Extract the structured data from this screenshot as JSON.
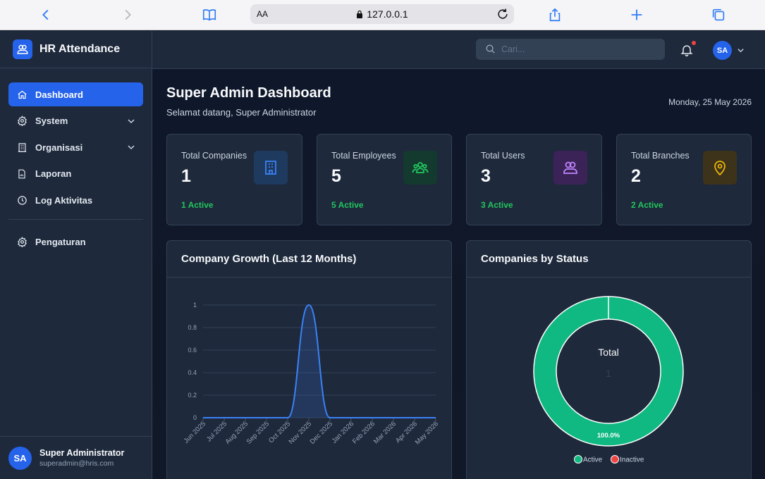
{
  "browser": {
    "text_size_label": "AA",
    "url": "127.0.0.1",
    "icons": [
      "back-icon",
      "forward-icon",
      "bookmarks-icon",
      "lock-icon",
      "reload-icon",
      "share-icon",
      "new-tab-icon",
      "tabs-icon"
    ]
  },
  "app": {
    "name": "HR Attendance",
    "logo_icon": "users-icon"
  },
  "sidebar": {
    "items": [
      {
        "label": "Dashboard",
        "icon": "home-icon",
        "active": true
      },
      {
        "label": "System",
        "icon": "gear-icon",
        "has_submenu": true
      },
      {
        "label": "Organisasi",
        "icon": "building-icon",
        "has_submenu": true
      },
      {
        "label": "Laporan",
        "icon": "report-icon"
      },
      {
        "label": "Log Aktivitas",
        "icon": "clock-icon"
      }
    ],
    "secondary": [
      {
        "label": "Pengaturan",
        "icon": "gear-icon"
      }
    ],
    "user": {
      "initials": "SA",
      "name": "Super Administrator",
      "email": "superadmin@hris.com"
    }
  },
  "topbar": {
    "search_placeholder": "Cari...",
    "avatar_initials": "SA",
    "has_notification": true
  },
  "page": {
    "title": "Super Admin Dashboard",
    "subtitle": "Selamat datang, Super Administrator",
    "date": "Monday, 25 May 2026"
  },
  "stats": [
    {
      "label": "Total Companies",
      "value": "1",
      "active": "1 Active",
      "icon": "building-icon",
      "color": "#3b82f6",
      "bg": "#1e3a5f"
    },
    {
      "label": "Total Employees",
      "value": "5",
      "active": "5 Active",
      "icon": "users-group-icon",
      "color": "#22c55e",
      "bg": "#14392f"
    },
    {
      "label": "Total Users",
      "value": "3",
      "active": "3 Active",
      "icon": "users-icon",
      "color": "#c084fc",
      "bg": "#3b2358"
    },
    {
      "label": "Total Branches",
      "value": "2",
      "active": "2 Active",
      "icon": "location-pin-icon",
      "color": "#eab308",
      "bg": "#3d331b"
    }
  ],
  "growth_panel": {
    "title": "Company Growth (Last 12 Months)"
  },
  "status_panel": {
    "title": "Companies by Status",
    "center_label": "Total",
    "center_value": "1",
    "slice_label": "100.0%"
  },
  "colors": {
    "accent": "#2563eb",
    "success": "#22c55e",
    "active_slice": "#10b981",
    "inactive_slice": "#ef4444",
    "line": "#3b82f6"
  },
  "chart_data": [
    {
      "type": "line",
      "title": "Company Growth (Last 12 Months)",
      "x": [
        "Jun 2025",
        "Jul 2025",
        "Aug 2025",
        "Sep 2025",
        "Oct 2025",
        "Nov 2025",
        "Dec 2025",
        "Jan 2026",
        "Feb 2026",
        "Mar 2026",
        "Apr 2026",
        "May 2026"
      ],
      "series": [
        {
          "values": [
            0,
            0,
            0,
            0,
            0,
            1,
            0,
            0,
            0,
            0,
            0,
            0
          ]
        }
      ],
      "ylim": [
        0,
        1
      ],
      "yticks": [
        "0",
        "0.2",
        "0.4",
        "0.6",
        "0.8",
        "1"
      ],
      "grid": true,
      "smooth": true,
      "fill": true
    },
    {
      "type": "pie",
      "title": "Companies by Status",
      "categories": [
        "Active",
        "Inactive"
      ],
      "values": [
        1,
        0
      ],
      "data_labels": [
        "100.0%"
      ],
      "legend": "bottom",
      "donut": true
    }
  ]
}
